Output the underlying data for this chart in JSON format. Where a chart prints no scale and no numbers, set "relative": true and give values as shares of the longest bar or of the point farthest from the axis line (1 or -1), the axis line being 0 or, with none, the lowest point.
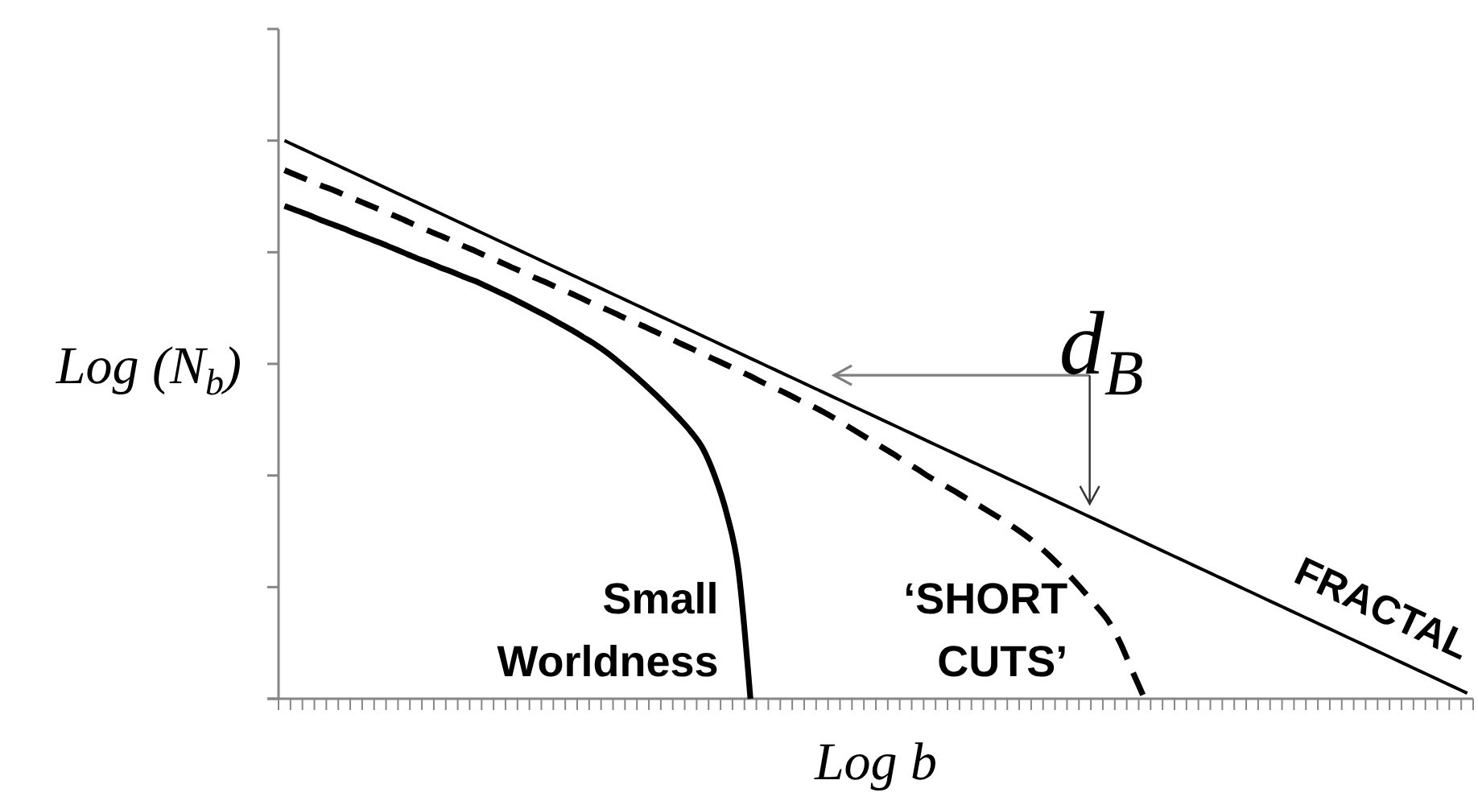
{
  "chart_data": {
    "type": "line",
    "relative": true,
    "xlabel": "Log b",
    "ylabel": "Log (N$_{b}$)",
    "annotations": [
      "d$_{B}$"
    ],
    "categories": [
      null,
      null,
      null,
      null,
      null,
      null,
      null,
      null,
      null,
      null,
      null,
      null,
      null,
      null,
      null,
      null,
      null,
      null,
      null,
      null,
      null,
      null,
      null,
      null,
      null,
      null,
      null,
      null,
      null,
      null,
      null,
      null,
      null,
      null,
      null,
      null,
      null,
      null,
      null,
      null,
      null,
      null,
      null,
      null,
      null,
      null,
      null,
      null,
      null,
      null,
      null,
      null,
      null,
      null,
      null,
      null,
      null,
      null,
      null,
      null,
      null,
      null,
      null,
      null,
      null,
      null,
      null,
      null,
      null,
      null,
      null,
      null,
      null,
      null,
      null,
      null,
      null,
      null,
      null,
      null,
      null,
      null,
      null,
      null,
      null,
      null,
      null,
      null,
      null,
      null,
      null,
      null,
      null,
      null,
      null,
      null,
      null,
      null,
      null,
      null
    ],
    "series": [
      {
        "name": "FRACTAL",
        "color": "#000000",
        "values": [
          1,
          0.99,
          0.98,
          0.97,
          0.96,
          0.95,
          0.94,
          0.93,
          0.92,
          0.91,
          0.9,
          0.89,
          0.88,
          0.87,
          0.86,
          0.85,
          0.84,
          0.83,
          0.82,
          0.81,
          0.8,
          0.79,
          0.78,
          0.77,
          0.76,
          0.75,
          0.74,
          0.73,
          0.72,
          0.71,
          0.7,
          0.69,
          0.68,
          0.67,
          0.66,
          0.65,
          0.64,
          0.63,
          0.62,
          0.61,
          0.6,
          0.59,
          0.58,
          0.57,
          0.56,
          0.55,
          0.54,
          0.53,
          0.52,
          0.51,
          0.5,
          0.49,
          0.48,
          0.47,
          0.46,
          0.45,
          0.44,
          0.43,
          0.42,
          0.41,
          0.4,
          0.39,
          0.38,
          0.37,
          0.36,
          0.35,
          0.34,
          0.33,
          0.32,
          0.31,
          0.3,
          0.29,
          0.28,
          0.27,
          0.26,
          0.25,
          0.24,
          0.23,
          0.22,
          0.21,
          0.2,
          0.19,
          0.18,
          0.17,
          0.16,
          0.15,
          0.14,
          0.13,
          0.12,
          0.11,
          0.1,
          0.09,
          0.08,
          0.07,
          0.06,
          0.05,
          0.04,
          0.03,
          0.02,
          0.01
        ]
      },
      {
        "name": "‘SHORT CUTS’",
        "color": "#000000",
        "line_style": "dashed",
        "values": [
          0.947,
          0.938,
          0.929,
          0.92,
          0.912,
          0.903,
          0.894,
          0.885,
          0.876,
          0.867,
          0.858,
          0.848,
          0.839,
          0.83,
          0.821,
          0.811,
          0.802,
          0.792,
          0.783,
          0.773,
          0.764,
          0.754,
          0.745,
          0.735,
          0.726,
          0.716,
          0.706,
          0.697,
          0.687,
          0.677,
          0.668,
          0.658,
          0.648,
          0.638,
          0.628,
          0.618,
          0.608,
          0.598,
          0.588,
          0.578,
          0.567,
          0.557,
          0.547,
          0.536,
          0.526,
          0.515,
          0.503,
          0.49,
          0.477,
          0.464,
          0.451,
          0.438,
          0.424,
          0.411,
          0.397,
          0.385,
          0.373,
          0.36,
          0.348,
          0.335,
          0.322,
          0.308,
          0.293,
          0.276,
          0.257,
          0.236,
          0.214,
          0.19,
          0.165,
          0.138,
          0.098,
          0.048,
          0,
          null,
          null,
          null,
          null,
          null,
          null,
          null,
          null,
          null,
          null,
          null,
          null,
          null,
          null,
          null,
          null,
          null,
          null,
          null,
          null,
          null,
          null,
          null,
          null,
          null,
          null,
          null
        ]
      },
      {
        "name": "Small Worldness",
        "color": "#000000",
        "values": [
          0.883,
          0.875,
          0.867,
          0.858,
          0.85,
          0.842,
          0.833,
          0.825,
          0.817,
          0.808,
          0.799,
          0.79,
          0.782,
          0.773,
          0.765,
          0.756,
          0.748,
          0.738,
          0.728,
          0.718,
          0.707,
          0.696,
          0.685,
          0.673,
          0.661,
          0.648,
          0.635,
          0.62,
          0.603,
          0.585,
          0.566,
          0.546,
          0.525,
          0.503,
          0.479,
          0.449,
          0.4,
          0.333,
          0.23,
          0,
          null,
          null,
          null,
          null,
          null,
          null,
          null,
          null,
          null,
          null,
          null,
          null,
          null,
          null,
          null,
          null,
          null,
          null,
          null,
          null,
          null,
          null,
          null,
          null,
          null,
          null,
          null,
          null,
          null,
          null,
          null,
          null,
          null,
          null,
          null,
          null,
          null,
          null,
          null,
          null,
          null,
          null,
          null,
          null,
          null,
          null,
          null,
          null,
          null,
          null,
          null,
          null,
          null,
          null,
          null,
          null,
          null,
          null,
          null,
          null
        ]
      }
    ]
  }
}
